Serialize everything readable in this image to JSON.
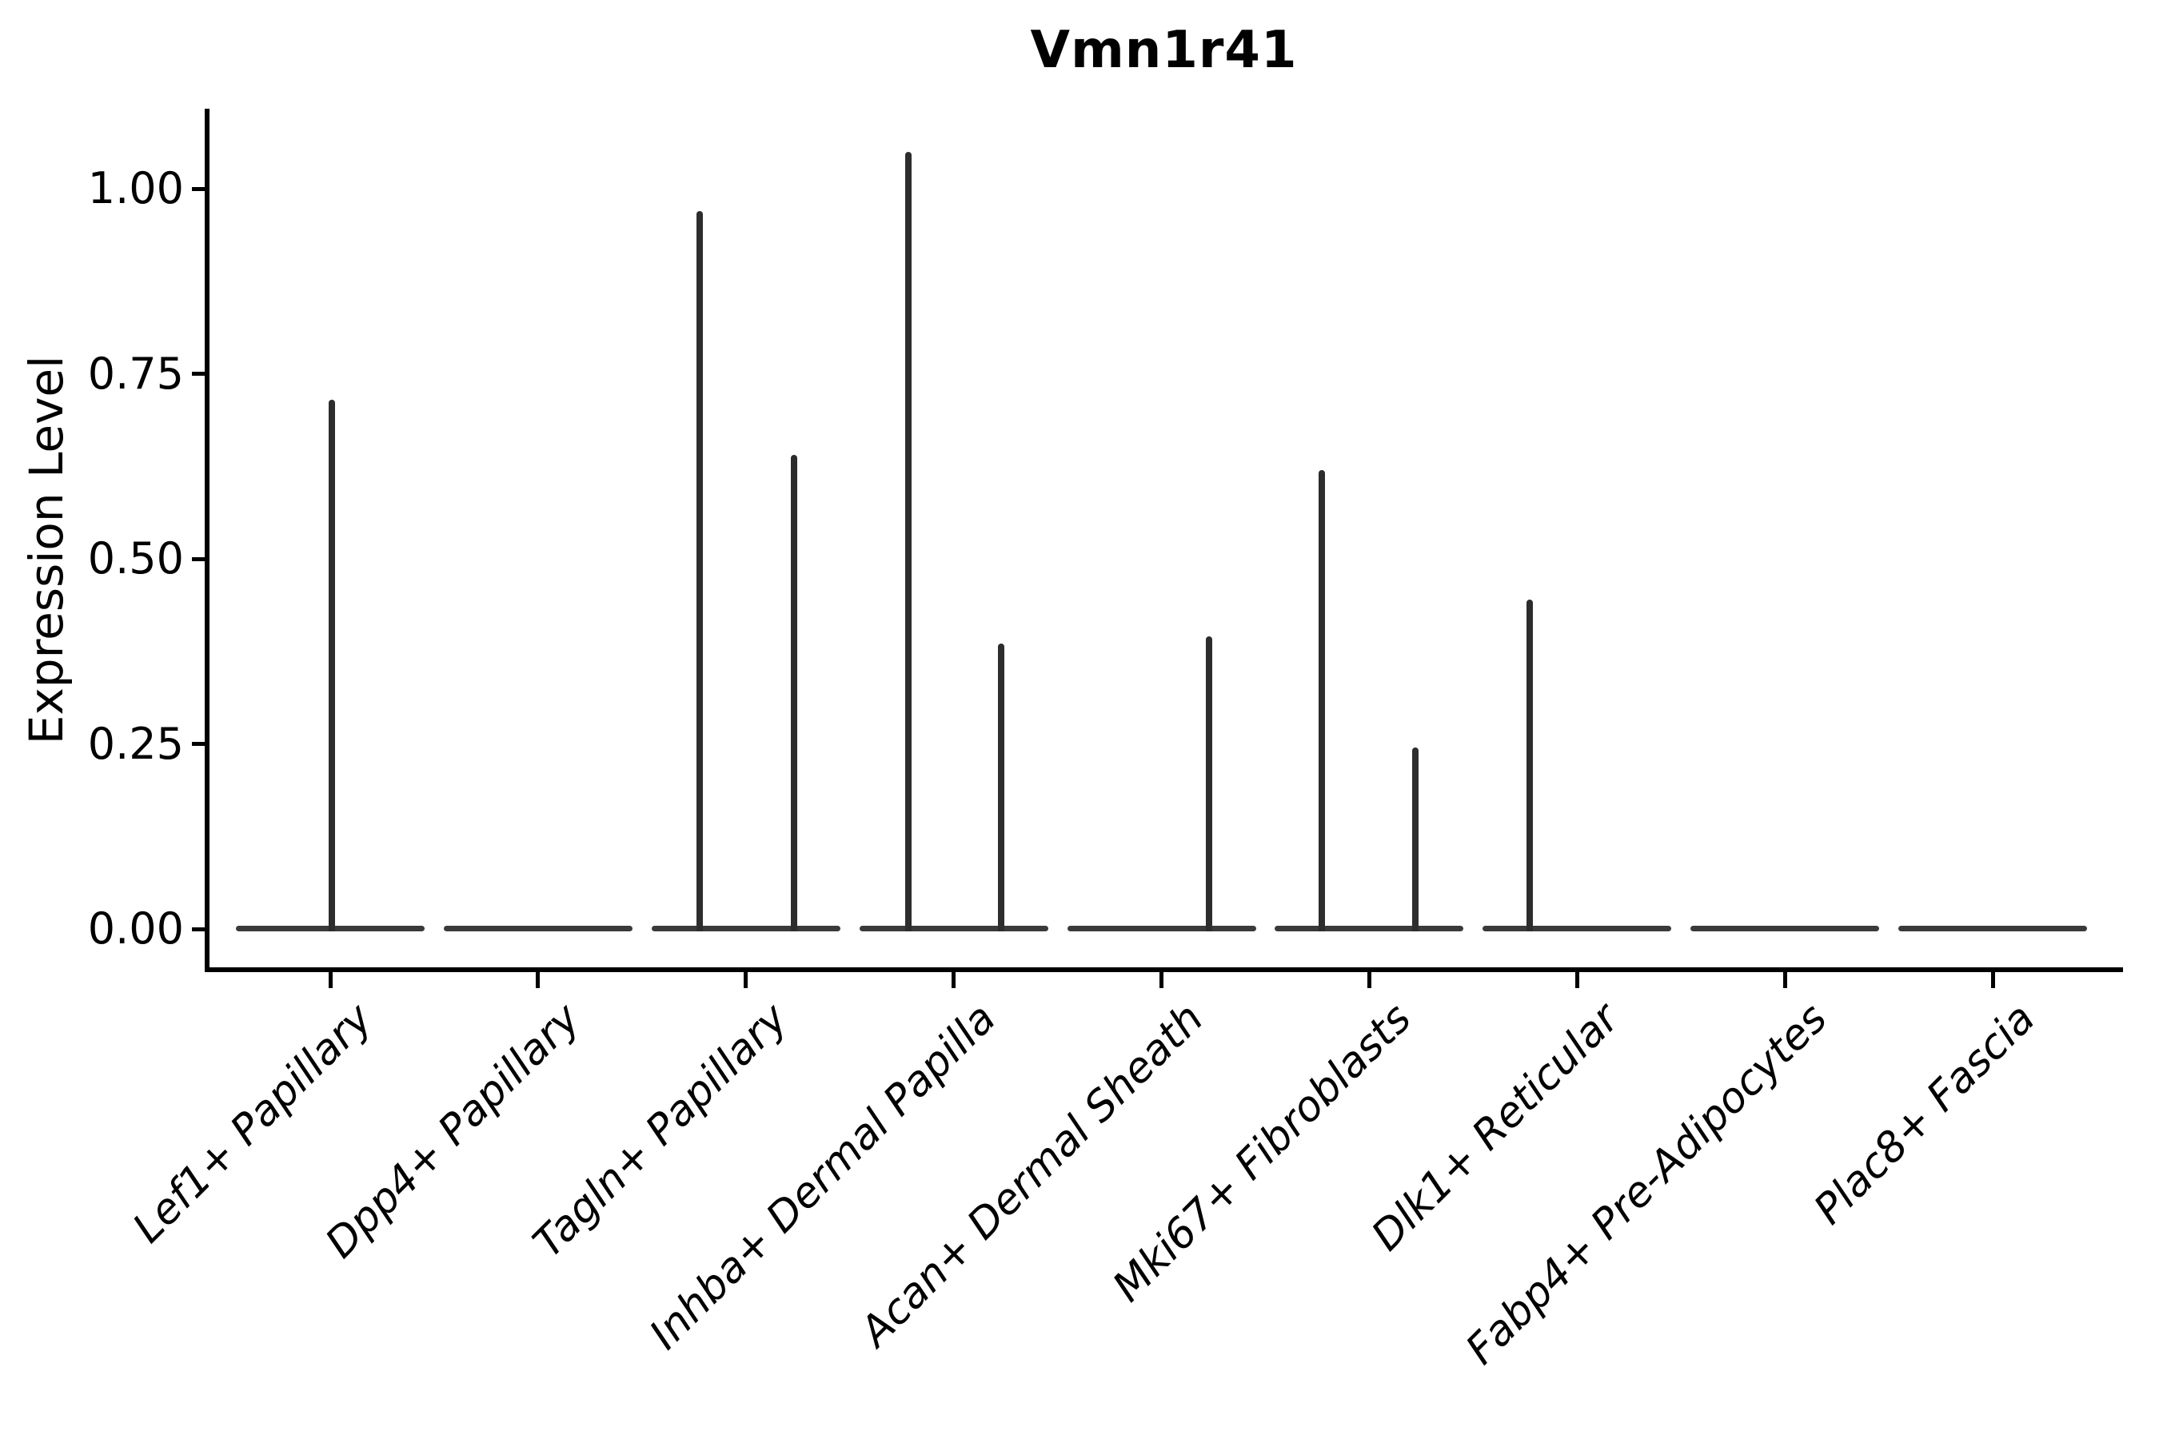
{
  "title": "Vmn1r41",
  "ylabel": "Expression Level",
  "colors": {
    "background": "#ffffff",
    "axis": "#000000",
    "text": "#000000",
    "violin_spike": "#2d2d2d",
    "violin_baseline": "#3a3a3a"
  },
  "chart_data": {
    "type": "violin",
    "title": "Vmn1r41",
    "xlabel": "",
    "ylabel": "Expression Level",
    "ylim": [
      0,
      1.1
    ],
    "grid": false,
    "legend": "none",
    "yticks": [
      0,
      0.25,
      0.5,
      0.75,
      1.0
    ],
    "ytick_labels": [
      "0.00",
      "0.25",
      "0.50",
      "0.75",
      "1.00"
    ],
    "categories": [
      "Lef1+ Papillary",
      "Dpp4+ Papillary",
      "Tagln+ Papillary",
      "Inhba+ Dermal Papilla",
      "Acan+ Dermal Sheath",
      "Mki67+ Fibroblasts",
      "Dlk1+ Reticular",
      "Fabp4+ Pre-Adipocytes",
      "Plac8+ Fascia"
    ],
    "series": [
      {
        "label": "Lef1+ Papillary",
        "baseline_value": 0,
        "spikes": [
          {
            "value": 0.715,
            "dx": 2
          }
        ]
      },
      {
        "label": "Dpp4+ Papillary",
        "baseline_value": 0,
        "spikes": []
      },
      {
        "label": "Tagln+ Papillary",
        "baseline_value": 0,
        "spikes": [
          {
            "value": 0.97,
            "dx": -58
          },
          {
            "value": 0.64,
            "dx": 60
          }
        ]
      },
      {
        "label": "Inhba+ Dermal Papilla",
        "baseline_value": 0,
        "spikes": [
          {
            "value": 1.05,
            "dx": -57
          },
          {
            "value": 0.385,
            "dx": 59
          }
        ]
      },
      {
        "label": "Acan+ Dermal Sheath",
        "baseline_value": 0,
        "spikes": [
          {
            "value": 0.395,
            "dx": 59
          }
        ]
      },
      {
        "label": "Mki67+ Fibroblasts",
        "baseline_value": 0,
        "spikes": [
          {
            "value": 0.62,
            "dx": -59
          },
          {
            "value": 0.245,
            "dx": 58
          }
        ]
      },
      {
        "label": "Dlk1+ Reticular",
        "baseline_value": 0,
        "spikes": [
          {
            "value": 0.445,
            "dx": -59
          }
        ]
      },
      {
        "label": "Fabp4+ Pre-Adipocytes",
        "baseline_value": 0,
        "spikes": []
      },
      {
        "label": "Plac8+ Fascia",
        "baseline_value": 0,
        "spikes": []
      }
    ]
  }
}
